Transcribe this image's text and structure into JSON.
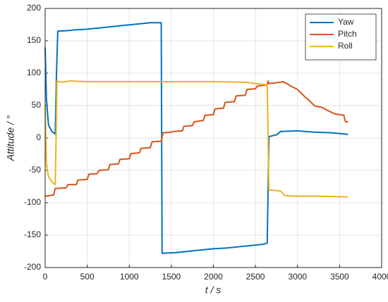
{
  "chart_data": {
    "type": "line",
    "x_label": "t / s",
    "y_label": "Attitude  / °",
    "xlim": [
      0,
      4000
    ],
    "xticks": [
      0,
      500,
      1000,
      1500,
      2000,
      2500,
      3000,
      3500,
      4000
    ],
    "ylim": [
      -200,
      200
    ],
    "yticks": [
      -200,
      -150,
      -100,
      -50,
      0,
      50,
      100,
      150,
      200
    ],
    "grid": true,
    "legend": "top-right",
    "series": [
      {
        "name": "Yaw",
        "color": "#0072BD",
        "x": [
          0,
          15,
          40,
          80,
          120,
          135,
          150,
          300,
          350,
          500,
          650,
          800,
          950,
          1100,
          1250,
          1380,
          1390,
          1550,
          1700,
          1850,
          2000,
          2150,
          2300,
          2450,
          2600,
          2640,
          2660,
          2750,
          2800,
          3000,
          3200,
          3400,
          3580,
          3600
        ],
        "values": [
          140,
          60,
          20,
          10,
          6,
          100,
          165,
          166,
          167,
          168,
          170,
          172,
          174,
          176,
          178,
          178,
          -178,
          -177,
          -175,
          -173,
          -171,
          -170,
          -168,
          -166,
          -164,
          -162,
          2,
          5,
          10,
          11,
          9,
          8,
          6,
          5
        ]
      },
      {
        "name": "Pitch",
        "color": "#D95319",
        "x": [
          0,
          100,
          120,
          250,
          270,
          370,
          390,
          500,
          520,
          620,
          640,
          750,
          770,
          870,
          890,
          1000,
          1020,
          1120,
          1140,
          1250,
          1270,
          1380,
          1400,
          1500,
          1520,
          1630,
          1650,
          1750,
          1770,
          1880,
          1900,
          2000,
          2020,
          2120,
          2140,
          2250,
          2270,
          2380,
          2400,
          2500,
          2520,
          2640,
          2650,
          2660,
          2800,
          2830,
          2900,
          2920,
          3000,
          3020,
          3100,
          3120,
          3200,
          3220,
          3300,
          3320,
          3430,
          3450,
          3550,
          3570,
          3600
        ],
        "values": [
          -90,
          -88,
          -78,
          -77,
          -72,
          -72,
          -65,
          -64,
          -56,
          -55,
          -50,
          -49,
          -41,
          -40,
          -33,
          -32,
          -24,
          -23,
          -16,
          -15,
          -6,
          -5,
          8,
          9,
          10,
          11,
          18,
          19,
          25,
          27,
          35,
          36,
          45,
          46,
          55,
          56,
          65,
          66,
          75,
          76,
          80,
          82,
          88,
          84,
          86,
          87,
          82,
          80,
          75,
          72,
          62,
          60,
          50,
          49,
          47,
          45,
          38,
          37,
          35,
          25,
          25
        ]
      },
      {
        "name": "Roll",
        "color": "#EDB120",
        "x": [
          0,
          15,
          40,
          80,
          120,
          130,
          140,
          200,
          300,
          500,
          1000,
          1500,
          2000,
          2400,
          2500,
          2640,
          2660,
          2800,
          2850,
          3000,
          3300,
          3600
        ],
        "values": [
          50,
          -40,
          -60,
          -68,
          -72,
          0,
          88,
          86,
          88,
          87,
          87,
          87,
          87,
          86,
          84,
          82,
          -80,
          -82,
          -89,
          -90,
          -90,
          -91
        ]
      }
    ]
  }
}
